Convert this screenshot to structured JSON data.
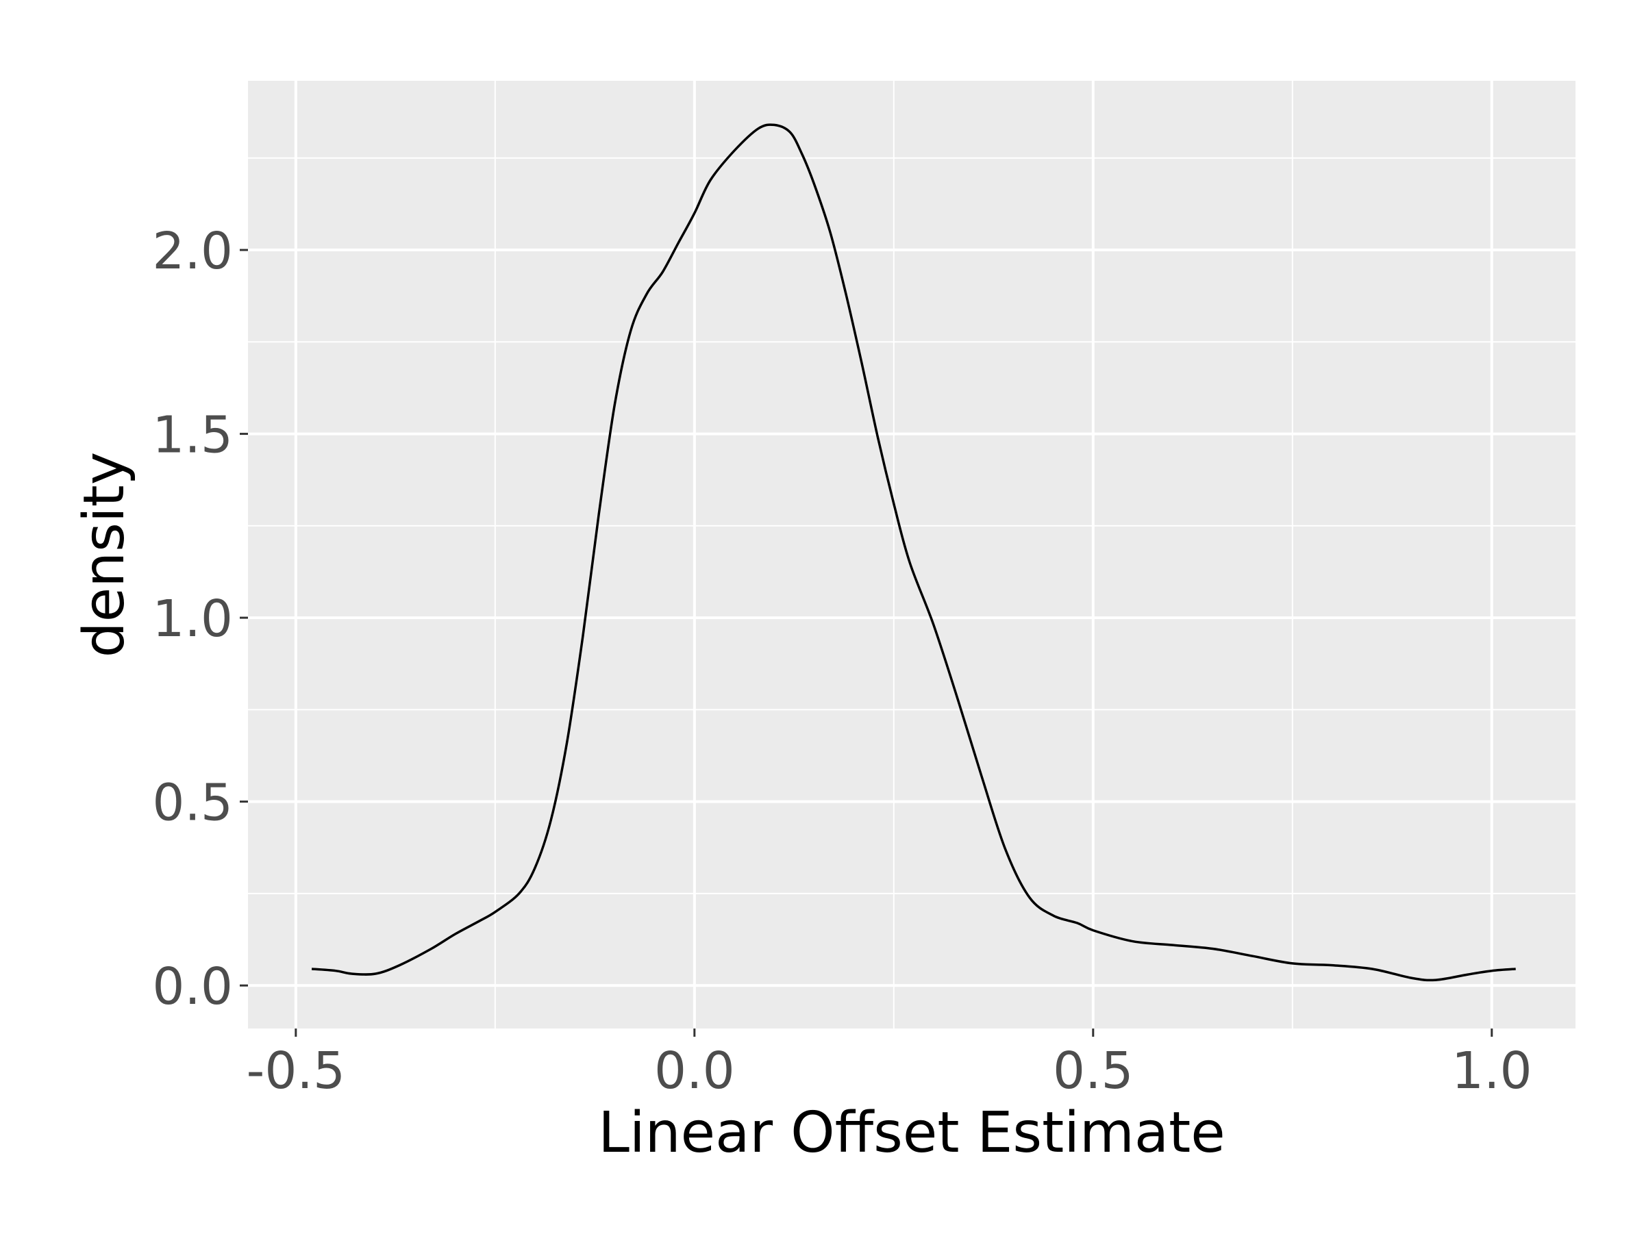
{
  "chart_data": {
    "type": "area",
    "title": "",
    "xlabel": "Linear Offset Estimate",
    "ylabel": "density",
    "xlim": [
      -0.56,
      1.105
    ],
    "ylim": [
      -0.117,
      2.46
    ],
    "x_ticks": [
      -0.5,
      0.0,
      0.5,
      1.0
    ],
    "x_tick_labels": [
      "-0.5",
      "0.0",
      "0.5",
      "1.0"
    ],
    "y_ticks": [
      0.0,
      0.5,
      1.0,
      1.5,
      2.0
    ],
    "y_tick_labels": [
      "0.0",
      "0.5",
      "1.0",
      "1.5",
      "2.0"
    ],
    "grid": true,
    "background": "#ebebeb",
    "gridline_color": "#ffffff",
    "line_color": "#000000",
    "fill": "none",
    "series": [
      {
        "x": [
          -0.48,
          -0.45,
          -0.43,
          -0.4,
          -0.37,
          -0.33,
          -0.3,
          -0.27,
          -0.25,
          -0.22,
          -0.2,
          -0.18,
          -0.16,
          -0.14,
          -0.12,
          -0.1,
          -0.08,
          -0.06,
          -0.04,
          -0.02,
          0.0,
          0.02,
          0.05,
          0.08,
          0.1,
          0.12,
          0.135,
          0.15,
          0.17,
          0.19,
          0.21,
          0.23,
          0.25,
          0.27,
          0.3,
          0.33,
          0.36,
          0.39,
          0.42,
          0.45,
          0.48,
          0.5,
          0.55,
          0.6,
          0.65,
          0.7,
          0.75,
          0.8,
          0.85,
          0.9,
          0.93,
          0.97,
          1.0,
          1.03
        ],
        "y": [
          0.045,
          0.04,
          0.032,
          0.032,
          0.055,
          0.1,
          0.14,
          0.175,
          0.2,
          0.25,
          0.32,
          0.45,
          0.66,
          0.95,
          1.28,
          1.58,
          1.78,
          1.88,
          1.94,
          2.02,
          2.1,
          2.19,
          2.27,
          2.33,
          2.34,
          2.32,
          2.26,
          2.18,
          2.05,
          1.88,
          1.69,
          1.49,
          1.31,
          1.15,
          0.98,
          0.78,
          0.57,
          0.37,
          0.24,
          0.19,
          0.17,
          0.15,
          0.12,
          0.11,
          0.1,
          0.08,
          0.06,
          0.055,
          0.045,
          0.02,
          0.015,
          0.03,
          0.04,
          0.045
        ]
      }
    ]
  }
}
